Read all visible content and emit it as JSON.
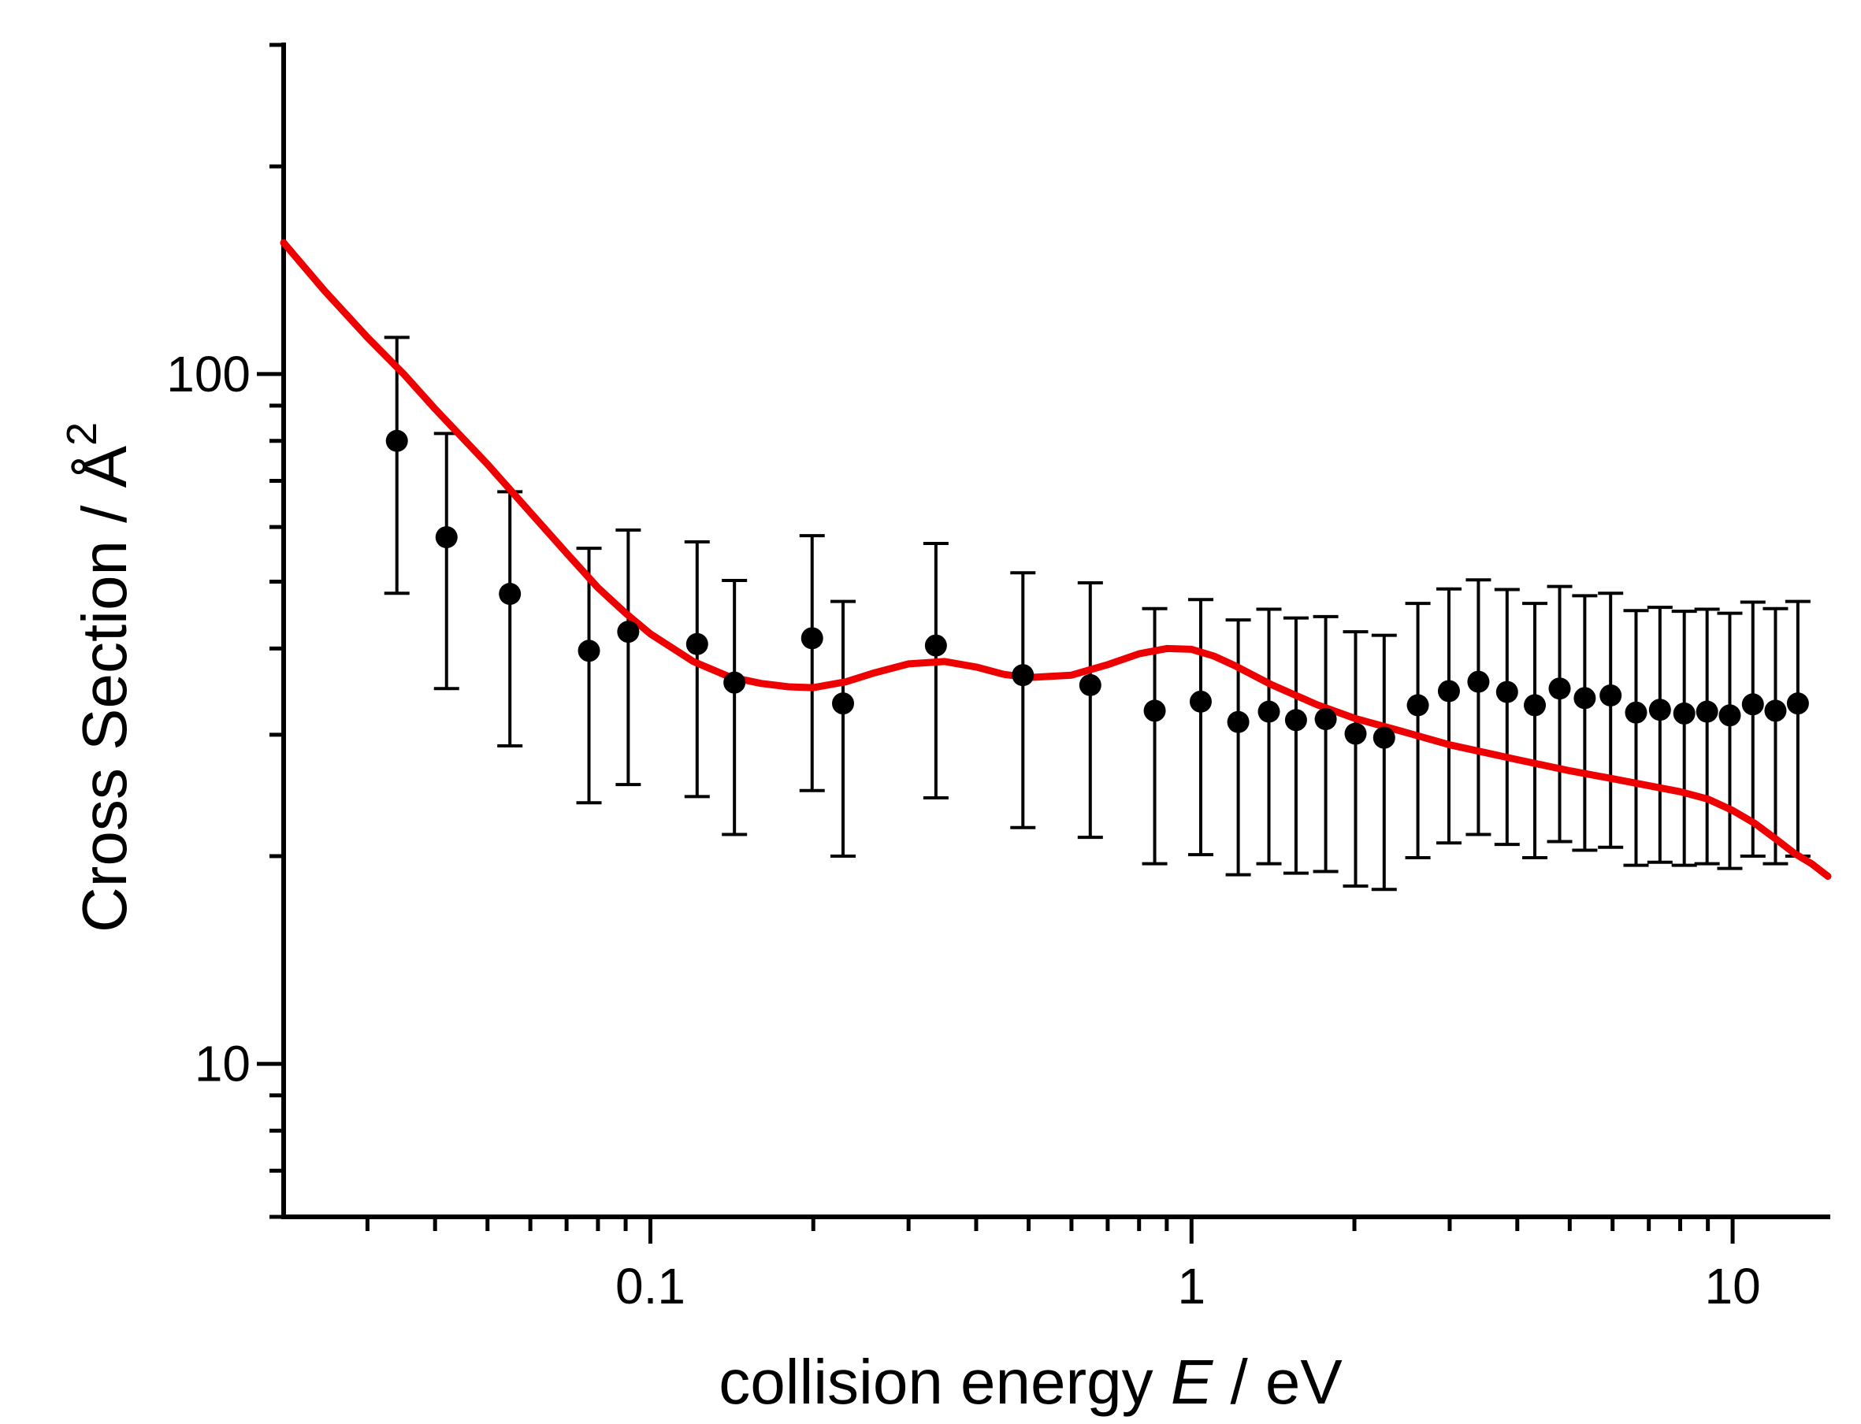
{
  "chart_data": {
    "type": "scatter",
    "xscale": "log",
    "yscale": "log",
    "xlim": [
      0.021,
      15
    ],
    "ylim": [
      6.0,
      300
    ],
    "xlabel_parts": [
      "collision energy ",
      "E",
      " / eV"
    ],
    "ylabel": "Cross Section / Å",
    "ylabel_superscript": "2",
    "x_tick_labels": [
      {
        "value": 0.1,
        "label": "0.1"
      },
      {
        "value": 1,
        "label": "1"
      },
      {
        "value": 10,
        "label": "10"
      }
    ],
    "y_tick_labels": [
      {
        "value": 10,
        "label": "10"
      },
      {
        "value": 100,
        "label": "100"
      }
    ],
    "colors": {
      "axis": "#000000",
      "data": "#000000",
      "theory": "#ee0000"
    },
    "series": [
      {
        "name": "experiment",
        "kind": "points-with-errorbars",
        "x": [
          0.034,
          0.042,
          0.055,
          0.077,
          0.091,
          0.122,
          0.143,
          0.199,
          0.227,
          0.337,
          0.488,
          0.65,
          0.855,
          1.04,
          1.22,
          1.39,
          1.56,
          1.77,
          2.01,
          2.27,
          2.62,
          2.99,
          3.39,
          3.83,
          4.31,
          4.79,
          5.33,
          5.95,
          6.63,
          7.34,
          8.14,
          8.97,
          9.88,
          10.9,
          12.0,
          13.2
        ],
        "y": [
          80,
          58,
          48,
          39.7,
          42.3,
          40.6,
          35.7,
          41.4,
          33.3,
          40.4,
          36.6,
          35.4,
          32.5,
          33.5,
          31.3,
          32.4,
          31.5,
          31.6,
          30.1,
          29.7,
          33.1,
          34.7,
          35.8,
          34.6,
          33.1,
          35.0,
          33.9,
          34.2,
          32.3,
          32.6,
          32.2,
          32.4,
          32.0,
          33.2,
          32.5,
          33.3
        ],
        "err_low": [
          48.1,
          35.0,
          28.9,
          23.9,
          25.4,
          24.4,
          21.5,
          24.9,
          20.0,
          24.3,
          22.0,
          21.3,
          19.5,
          20.1,
          18.8,
          19.5,
          18.9,
          19.0,
          18.1,
          17.9,
          19.9,
          20.9,
          21.5,
          20.8,
          19.9,
          21.0,
          20.4,
          20.6,
          19.4,
          19.6,
          19.4,
          19.5,
          19.2,
          20.0,
          19.5,
          20.0
        ],
        "err_high": [
          113,
          82,
          67.5,
          55.9,
          59.4,
          57.1,
          50.2,
          58.3,
          46.8,
          56.8,
          51.5,
          49.8,
          45.7,
          47.1,
          44.0,
          45.6,
          44.3,
          44.5,
          42.3,
          41.8,
          46.5,
          48.8,
          50.3,
          48.7,
          46.5,
          49.2,
          47.7,
          48.1,
          45.4,
          45.9,
          45.3,
          45.6,
          45.0,
          46.7,
          45.7,
          46.8
        ]
      },
      {
        "name": "theory",
        "kind": "line",
        "x": [
          0.021,
          0.025,
          0.03,
          0.035,
          0.04,
          0.05,
          0.06,
          0.07,
          0.08,
          0.09,
          0.1,
          0.12,
          0.14,
          0.16,
          0.18,
          0.2,
          0.23,
          0.26,
          0.3,
          0.35,
          0.4,
          0.45,
          0.5,
          0.6,
          0.7,
          0.8,
          0.9,
          1.0,
          1.1,
          1.2,
          1.4,
          1.7,
          2.0,
          2.5,
          3.0,
          4.0,
          5.0,
          6.0,
          7.0,
          8.0,
          9.0,
          10.0,
          11.0,
          12.0,
          13.0,
          14.0,
          15.0
        ],
        "y": [
          155,
          132,
          113,
          100,
          89,
          74,
          63,
          55,
          49,
          45,
          42,
          38.3,
          36.4,
          35.6,
          35.2,
          35.1,
          35.8,
          36.9,
          38.0,
          38.3,
          37.6,
          36.7,
          36.3,
          36.6,
          37.9,
          39.3,
          40.0,
          39.9,
          39.0,
          37.8,
          35.5,
          33.2,
          31.7,
          30.2,
          29.0,
          27.6,
          26.6,
          25.9,
          25.3,
          24.8,
          24.2,
          23.3,
          22.3,
          21.2,
          20.2,
          19.5,
          18.7
        ]
      }
    ]
  }
}
